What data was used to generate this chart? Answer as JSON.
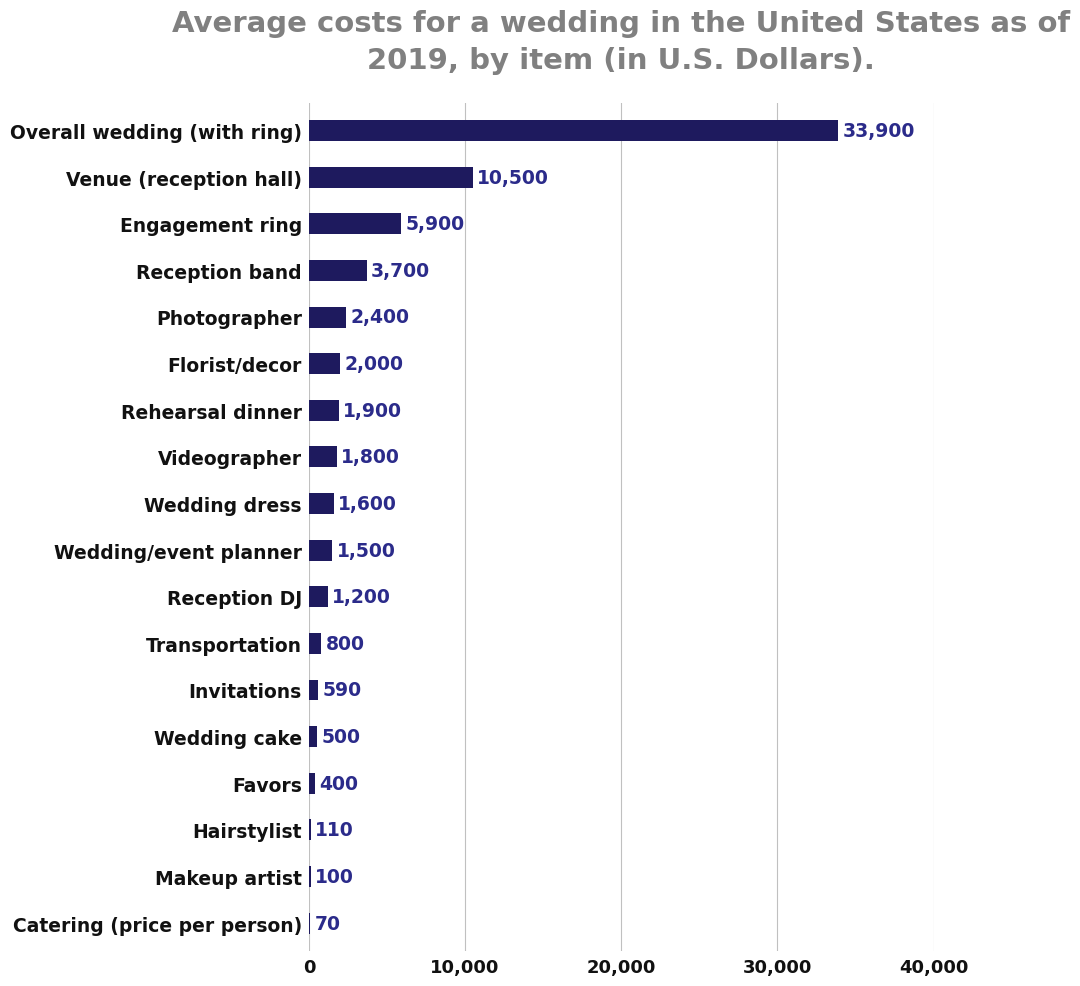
{
  "title": "Average costs for a wedding in the United States as of\n2019, by item (in U.S. Dollars).",
  "categories": [
    "Overall wedding (with ring)",
    "Venue (reception hall)",
    "Engagement ring",
    "Reception band",
    "Photographer",
    "Florist/decor",
    "Rehearsal dinner",
    "Videographer",
    "Wedding dress",
    "Wedding/event planner",
    "Reception DJ",
    "Transportation",
    "Invitations",
    "Wedding cake",
    "Favors",
    "Hairstylist",
    "Makeup artist",
    "Catering (price per person)"
  ],
  "values": [
    33900,
    10500,
    5900,
    3700,
    2400,
    2000,
    1900,
    1800,
    1600,
    1500,
    1200,
    800,
    590,
    500,
    400,
    110,
    100,
    70
  ],
  "bar_color": "#1e1a5e",
  "label_color": "#2b2b8a",
  "title_color": "#808080",
  "background_color": "#ffffff",
  "xlim": [
    0,
    40000
  ],
  "xticks": [
    0,
    10000,
    20000,
    30000,
    40000
  ],
  "xtick_labels": [
    "0",
    "10,000",
    "20,000",
    "30,000",
    "40,000"
  ],
  "value_labels": [
    "33,900",
    "10,500",
    "5,900",
    "3,700",
    "2,400",
    "2,000",
    "1,900",
    "1,800",
    "1,600",
    "1,500",
    "1,200",
    "800",
    "590",
    "500",
    "400",
    "110",
    "100",
    "70"
  ],
  "title_fontsize": 21,
  "label_fontsize": 13.5,
  "value_fontsize": 13.5,
  "tick_fontsize": 13
}
